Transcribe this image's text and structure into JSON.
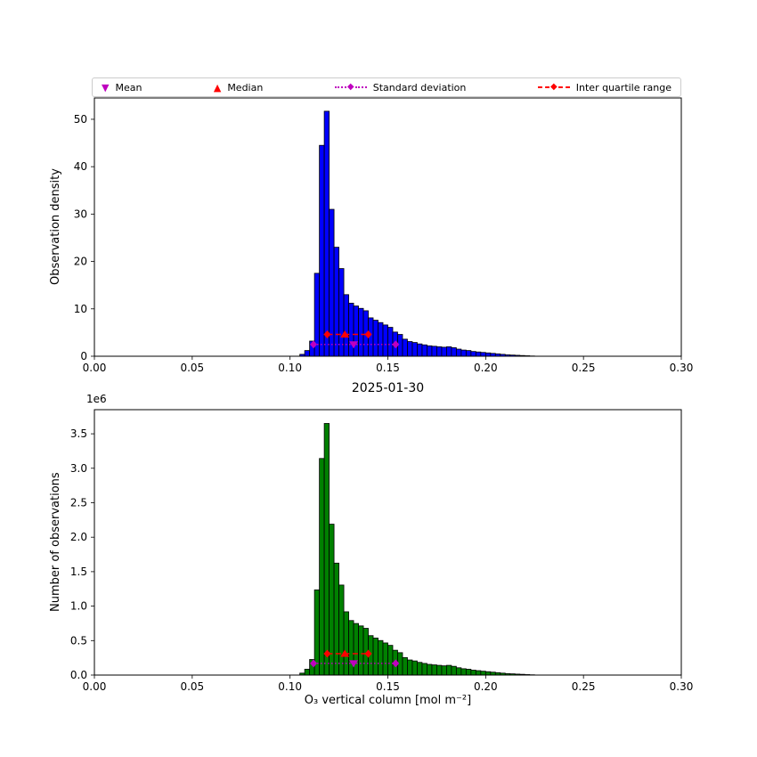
{
  "figure": {
    "background": "#ffffff"
  },
  "legend": {
    "items": [
      {
        "label": "Mean",
        "marker": "triangle-down",
        "color": "#bf00bf",
        "linestyle": "none"
      },
      {
        "label": "Median",
        "marker": "triangle-up",
        "color": "#ff0000",
        "linestyle": "none"
      },
      {
        "label": "Standard deviation",
        "marker": "diamond",
        "color": "#bf00bf",
        "linestyle": "dotted"
      },
      {
        "label": "Inter quartile range",
        "marker": "diamond",
        "color": "#ff0000",
        "linestyle": "dashed"
      }
    ]
  },
  "chart_data": [
    {
      "type": "bar",
      "subtype": "histogram",
      "title": "",
      "xlabel": "",
      "ylabel": "Observation density",
      "bar_color": "#0000ff",
      "edge_color": "#000000",
      "legend_position": "above axes, horizontal, expanded",
      "grid": false,
      "xlim": [
        0.0,
        0.3
      ],
      "ylim": [
        0,
        54.5
      ],
      "xticks": [
        0.0,
        0.05,
        0.1,
        0.15,
        0.2,
        0.25,
        0.3
      ],
      "xticklabels": [
        "0.00",
        "0.05",
        "0.10",
        "0.15",
        "0.20",
        "0.25",
        "0.30"
      ],
      "yticks": [
        0,
        10,
        20,
        30,
        40,
        50
      ],
      "yticklabels": [
        "0",
        "10",
        "20",
        "30",
        "40",
        "50"
      ],
      "bin_width": 0.0025,
      "bin_left_edges": [
        0.105,
        0.1075,
        0.11,
        0.1125,
        0.115,
        0.1175,
        0.12,
        0.1225,
        0.125,
        0.1275,
        0.13,
        0.1325,
        0.135,
        0.1375,
        0.14,
        0.1425,
        0.145,
        0.1475,
        0.15,
        0.1525,
        0.155,
        0.1575,
        0.16,
        0.1625,
        0.165,
        0.1675,
        0.17,
        0.1725,
        0.175,
        0.1775,
        0.18,
        0.1825,
        0.185,
        0.1875,
        0.19,
        0.1925,
        0.195,
        0.1975,
        0.2,
        0.2025,
        0.205,
        0.2075,
        0.21,
        0.2125,
        0.215,
        0.2175,
        0.22,
        0.2225
      ],
      "values": [
        0.4,
        1.2,
        3.2,
        17.5,
        44.5,
        51.7,
        31.0,
        23.0,
        18.5,
        13.0,
        11.2,
        10.6,
        10.1,
        9.6,
        8.1,
        7.6,
        7.1,
        6.6,
        6.1,
        5.1,
        4.6,
        3.6,
        3.1,
        2.9,
        2.6,
        2.4,
        2.2,
        2.1,
        2.0,
        1.9,
        2.0,
        1.8,
        1.5,
        1.3,
        1.2,
        1.0,
        0.9,
        0.8,
        0.7,
        0.6,
        0.5,
        0.4,
        0.3,
        0.25,
        0.2,
        0.15,
        0.1,
        0.05
      ],
      "stats": {
        "mean": {
          "x": 0.1325,
          "y": 2.5,
          "color": "#bf00bf",
          "marker": "triangle-down"
        },
        "median": {
          "x": 0.128,
          "y": 4.6,
          "color": "#ff0000",
          "marker": "triangle-up"
        },
        "std_range": {
          "x1": 0.112,
          "x2": 0.154,
          "y": 2.5,
          "color": "#bf00bf",
          "linestyle": "dotted"
        },
        "iqr_range": {
          "x1": 0.119,
          "x2": 0.14,
          "y": 4.6,
          "color": "#ff0000",
          "linestyle": "dashed"
        }
      }
    },
    {
      "type": "bar",
      "subtype": "histogram",
      "title": "2025-01-30",
      "xlabel": "O₃ vertical column [mol m⁻²]",
      "ylabel": "Number of observations",
      "offset_text": "1e6",
      "bar_color": "#008000",
      "edge_color": "#000000",
      "grid": false,
      "xlim": [
        0.0,
        0.3
      ],
      "ylim": [
        0,
        3850000
      ],
      "xticks": [
        0.0,
        0.05,
        0.1,
        0.15,
        0.2,
        0.25,
        0.3
      ],
      "xticklabels": [
        "0.00",
        "0.05",
        "0.10",
        "0.15",
        "0.20",
        "0.25",
        "0.30"
      ],
      "yticks": [
        0,
        500000,
        1000000,
        1500000,
        2000000,
        2500000,
        3000000,
        3500000
      ],
      "yticklabels": [
        "0.0",
        "0.5",
        "1.0",
        "1.5",
        "2.0",
        "2.5",
        "3.0",
        "3.5"
      ],
      "bin_width": 0.0025,
      "bin_left_edges": [
        0.105,
        0.1075,
        0.11,
        0.1125,
        0.115,
        0.1175,
        0.12,
        0.1225,
        0.125,
        0.1275,
        0.13,
        0.1325,
        0.135,
        0.1375,
        0.14,
        0.1425,
        0.145,
        0.1475,
        0.15,
        0.1525,
        0.155,
        0.1575,
        0.16,
        0.1625,
        0.165,
        0.1675,
        0.17,
        0.1725,
        0.175,
        0.1775,
        0.18,
        0.1825,
        0.185,
        0.1875,
        0.19,
        0.1925,
        0.195,
        0.1975,
        0.2,
        0.2025,
        0.205,
        0.2075,
        0.21,
        0.2125,
        0.215,
        0.2175,
        0.22,
        0.2225
      ],
      "values": [
        28000,
        85000,
        226000,
        1236000,
        3142000,
        3650000,
        2189000,
        1624000,
        1306000,
        918000,
        791000,
        748000,
        713000,
        678000,
        572000,
        537000,
        501000,
        466000,
        431000,
        360000,
        325000,
        254000,
        219000,
        205000,
        184000,
        169000,
        155000,
        148000,
        141000,
        134000,
        141000,
        127000,
        106000,
        92000,
        85000,
        71000,
        64000,
        56000,
        49000,
        42000,
        35000,
        28000,
        21000,
        18000,
        14000,
        11000,
        7000,
        4000
      ],
      "stats": {
        "mean": {
          "x": 0.1325,
          "y": 170000,
          "color": "#bf00bf",
          "marker": "triangle-down"
        },
        "median": {
          "x": 0.128,
          "y": 310000,
          "color": "#ff0000",
          "marker": "triangle-up"
        },
        "std_range": {
          "x1": 0.112,
          "x2": 0.154,
          "y": 170000,
          "color": "#bf00bf",
          "linestyle": "dotted"
        },
        "iqr_range": {
          "x1": 0.119,
          "x2": 0.14,
          "y": 310000,
          "color": "#ff0000",
          "linestyle": "dashed"
        }
      }
    }
  ]
}
